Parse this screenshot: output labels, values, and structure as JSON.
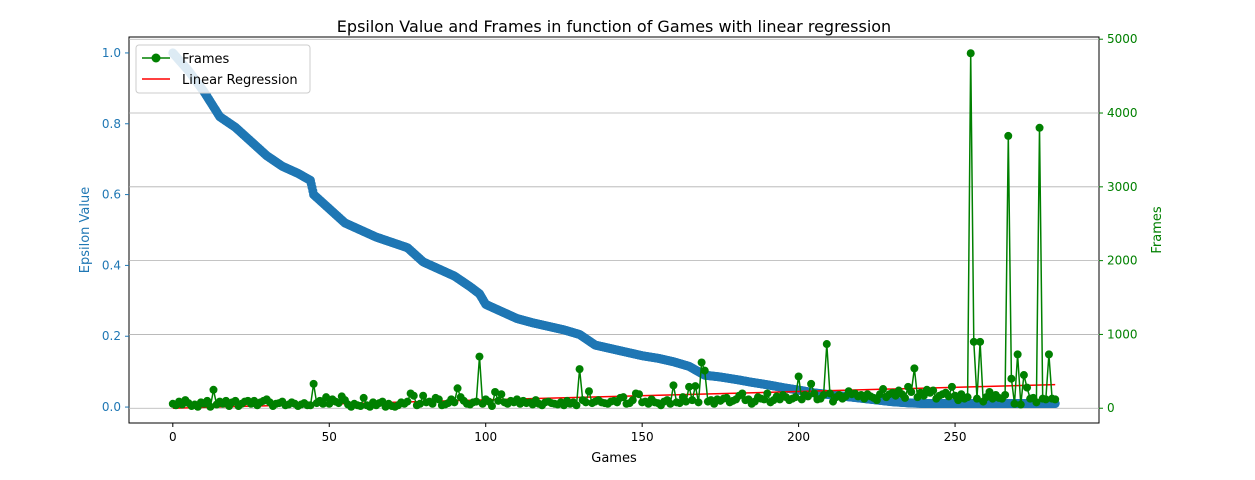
{
  "chart_data": {
    "type": "line",
    "title": "Epsilon Value and Frames in function of Games with linear regression",
    "xlabel": "Games",
    "ylabel_left": "Epsilon Value",
    "ylabel_right": "Frames",
    "xlim": [
      -14,
      296
    ],
    "ylim_left": [
      -0.045,
      1.045
    ],
    "ylim_right": [
      -200,
      5030
    ],
    "xticks": [
      0,
      50,
      100,
      150,
      200,
      250
    ],
    "xtick_labels": [
      "0",
      "50",
      "100",
      "150",
      "200",
      "250"
    ],
    "yticks_left": [
      0.0,
      0.2,
      0.4,
      0.6,
      0.8,
      1.0
    ],
    "ytick_labels_left": [
      "0.0",
      "0.2",
      "0.4",
      "0.6",
      "0.8",
      "1.0"
    ],
    "yticks_right": [
      0,
      1000,
      2000,
      3000,
      4000,
      5000
    ],
    "ytick_labels_right": [
      "0",
      "1000",
      "2000",
      "3000",
      "4000",
      "5000"
    ],
    "grid": "horizontal lines at right-axis ticks",
    "legend_placement": "top-left",
    "colors": {
      "epsilon": "#1f77b4",
      "frames": "#008000",
      "regression": "#ff0000",
      "left_axis": "#1f77b4",
      "right_axis": "#008000"
    },
    "series": [
      {
        "name": "",
        "axis": "left",
        "style": "markers",
        "x": [
          0,
          5,
          10,
          15,
          20,
          25,
          30,
          35,
          40,
          44,
          45,
          50,
          55,
          60,
          65,
          70,
          75,
          80,
          85,
          90,
          95,
          98,
          100,
          105,
          110,
          115,
          120,
          125,
          130,
          135,
          140,
          145,
          150,
          155,
          160,
          165,
          170,
          175,
          180,
          185,
          190,
          195,
          200,
          205,
          210,
          215,
          220,
          225,
          230,
          235,
          240,
          245,
          250,
          255,
          260,
          265,
          270,
          275,
          282
        ],
        "values": [
          1.0,
          0.95,
          0.89,
          0.82,
          0.79,
          0.75,
          0.71,
          0.68,
          0.66,
          0.64,
          0.6,
          0.56,
          0.52,
          0.5,
          0.48,
          0.465,
          0.45,
          0.41,
          0.39,
          0.37,
          0.34,
          0.32,
          0.29,
          0.27,
          0.25,
          0.238,
          0.228,
          0.218,
          0.205,
          0.175,
          0.165,
          0.155,
          0.145,
          0.138,
          0.128,
          0.115,
          0.09,
          0.085,
          0.078,
          0.07,
          0.063,
          0.055,
          0.048,
          0.04,
          0.035,
          0.03,
          0.025,
          0.02,
          0.015,
          0.012,
          0.01,
          0.01,
          0.01,
          0.01,
          0.01,
          0.01,
          0.01,
          0.01,
          0.01
        ]
      },
      {
        "name": "Frames",
        "axis": "right",
        "style": "line-markers",
        "x": [
          0,
          1,
          2,
          3,
          4,
          5,
          6,
          7,
          8,
          9,
          10,
          11,
          12,
          13,
          14,
          15,
          16,
          17,
          18,
          19,
          20,
          21,
          22,
          23,
          24,
          25,
          26,
          27,
          28,
          29,
          30,
          31,
          32,
          33,
          34,
          35,
          36,
          37,
          38,
          39,
          40,
          41,
          42,
          43,
          44,
          45,
          46,
          47,
          48,
          49,
          50,
          51,
          52,
          53,
          54,
          55,
          56,
          57,
          58,
          59,
          60,
          61,
          62,
          63,
          64,
          65,
          66,
          67,
          68,
          69,
          70,
          71,
          72,
          73,
          74,
          75,
          76,
          77,
          78,
          79,
          80,
          81,
          82,
          83,
          84,
          85,
          86,
          87,
          88,
          89,
          90,
          91,
          92,
          93,
          94,
          95,
          96,
          97,
          98,
          99,
          100,
          101,
          102,
          103,
          104,
          105,
          106,
          107,
          108,
          109,
          110,
          111,
          112,
          113,
          114,
          115,
          116,
          117,
          118,
          119,
          120,
          121,
          122,
          123,
          124,
          125,
          126,
          127,
          128,
          129,
          130,
          131,
          132,
          133,
          134,
          135,
          136,
          137,
          138,
          139,
          140,
          141,
          142,
          143,
          144,
          145,
          146,
          147,
          148,
          149,
          150,
          151,
          152,
          153,
          154,
          155,
          156,
          157,
          158,
          159,
          160,
          161,
          162,
          163,
          164,
          165,
          166,
          167,
          168,
          169,
          170,
          171,
          172,
          173,
          174,
          175,
          176,
          177,
          178,
          179,
          180,
          181,
          182,
          183,
          184,
          185,
          186,
          187,
          188,
          189,
          190,
          191,
          192,
          193,
          194,
          195,
          196,
          197,
          198,
          199,
          200,
          201,
          202,
          203,
          204,
          205,
          206,
          207,
          208,
          209,
          210,
          211,
          212,
          213,
          214,
          215,
          216,
          217,
          218,
          219,
          220,
          221,
          222,
          223,
          224,
          225,
          226,
          227,
          228,
          229,
          230,
          231,
          232,
          233,
          234,
          235,
          236,
          237,
          238,
          239,
          240,
          241,
          242,
          243,
          244,
          245,
          246,
          247,
          248,
          249,
          250,
          251,
          252,
          253,
          254,
          255,
          256,
          257,
          258,
          259,
          260,
          261,
          262,
          263,
          264,
          265,
          266,
          267,
          268,
          269,
          270,
          271,
          272,
          273,
          274,
          275,
          276,
          277,
          278,
          279,
          280,
          281,
          282
        ],
        "values": [
          60,
          40,
          90,
          50,
          110,
          70,
          30,
          50,
          20,
          80,
          60,
          100,
          20,
          250,
          50,
          90,
          60,
          100,
          30,
          80,
          100,
          30,
          60,
          90,
          100,
          60,
          100,
          40,
          80,
          100,
          120,
          80,
          30,
          60,
          70,
          90,
          40,
          50,
          80,
          60,
          30,
          50,
          70,
          40,
          40,
          330,
          70,
          100,
          60,
          150,
          60,
          120,
          90,
          70,
          160,
          110,
          50,
          20,
          60,
          40,
          30,
          140,
          40,
          20,
          80,
          40,
          70,
          90,
          20,
          60,
          30,
          20,
          40,
          80,
          60,
          90,
          200,
          170,
          40,
          60,
          170,
          80,
          90,
          60,
          140,
          120,
          40,
          50,
          70,
          120,
          80,
          270,
          150,
          100,
          60,
          50,
          80,
          90,
          700,
          60,
          120,
          90,
          30,
          220,
          100,
          190,
          80,
          60,
          100,
          80,
          120,
          60,
          100,
          70,
          80,
          50,
          110,
          60,
          40,
          80,
          90,
          70,
          60,
          50,
          80,
          40,
          100,
          60,
          80,
          40,
          530,
          110,
          80,
          230,
          70,
          90,
          110,
          80,
          70,
          60,
          90,
          100,
          80,
          140,
          150,
          60,
          70,
          110,
          200,
          190,
          80,
          90,
          60,
          120,
          80,
          70,
          40,
          90,
          110,
          60,
          310,
          80,
          70,
          150,
          90,
          290,
          110,
          300,
          80,
          620,
          510,
          90,
          110,
          60,
          120,
          100,
          130,
          140,
          80,
          100,
          120,
          170,
          200,
          110,
          120,
          60,
          90,
          150,
          130,
          120,
          200,
          80,
          110,
          160,
          120,
          180,
          150,
          110,
          130,
          150,
          430,
          120,
          180,
          160,
          330,
          200,
          120,
          130,
          180,
          870,
          200,
          90,
          150,
          180,
          130,
          160,
          230,
          190,
          200,
          160,
          180,
          130,
          190,
          160,
          140,
          110,
          190,
          260,
          150,
          190,
          210,
          170,
          240,
          190,
          140,
          290,
          220,
          540,
          150,
          210,
          170,
          250,
          210,
          240,
          130,
          170,
          190,
          210,
          160,
          290,
          170,
          110,
          190,
          130,
          150,
          4810,
          900,
          130,
          900,
          90,
          150,
          220,
          130,
          180,
          140,
          130,
          180,
          3690,
          400,
          60,
          730,
          50,
          450,
          280,
          130,
          140,
          80,
          3800,
          130,
          120,
          730,
          130,
          120
        ]
      },
      {
        "name": "Linear Regression",
        "axis": "right",
        "style": "line",
        "x": [
          0,
          282
        ],
        "values": [
          0,
          320
        ]
      }
    ]
  }
}
